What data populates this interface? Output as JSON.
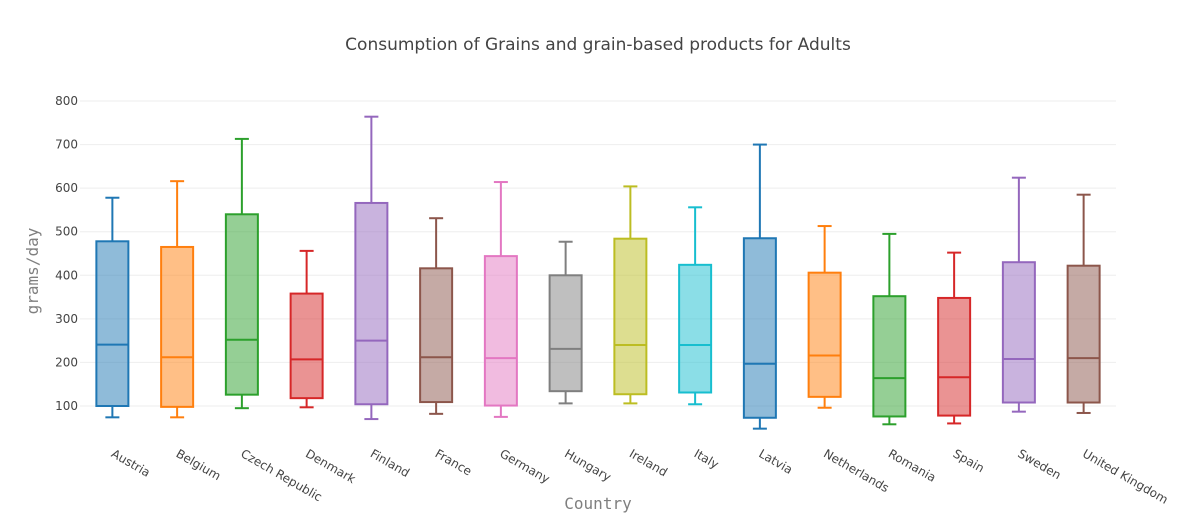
{
  "chart_data": {
    "type": "box",
    "title": "Consumption of Grains and grain-based products for Adults",
    "xlabel": "Country",
    "ylabel": "grams/day",
    "ylim": [
      50,
      820
    ],
    "yticks": [
      100,
      200,
      300,
      400,
      500,
      600,
      700,
      800
    ],
    "grid": true,
    "legend": "none",
    "categories": [
      "Austria",
      "Belgium",
      "Czech Republic",
      "Denmark",
      "Finland",
      "France",
      "Germany",
      "Hungary",
      "Ireland",
      "Italy",
      "Latvia",
      "Netherlands",
      "Romania",
      "Spain",
      "Sweden",
      "United Kingdom"
    ],
    "boxes": [
      {
        "min": 74,
        "q1": 100,
        "median": 241,
        "q3": 478,
        "max": 578
      },
      {
        "min": 74,
        "q1": 98,
        "median": 212,
        "q3": 465,
        "max": 616
      },
      {
        "min": 95,
        "q1": 126,
        "median": 252,
        "q3": 540,
        "max": 713
      },
      {
        "min": 97,
        "q1": 118,
        "median": 207,
        "q3": 358,
        "max": 456
      },
      {
        "min": 70,
        "q1": 104,
        "median": 250,
        "q3": 566,
        "max": 764
      },
      {
        "min": 82,
        "q1": 109,
        "median": 212,
        "q3": 416,
        "max": 531
      },
      {
        "min": 75,
        "q1": 101,
        "median": 210,
        "q3": 444,
        "max": 614
      },
      {
        "min": 106,
        "q1": 134,
        "median": 231,
        "q3": 400,
        "max": 477
      },
      {
        "min": 106,
        "q1": 127,
        "median": 240,
        "q3": 484,
        "max": 604
      },
      {
        "min": 104,
        "q1": 131,
        "median": 240,
        "q3": 424,
        "max": 556
      },
      {
        "min": 48,
        "q1": 73,
        "median": 197,
        "q3": 485,
        "max": 700
      },
      {
        "min": 96,
        "q1": 121,
        "median": 216,
        "q3": 406,
        "max": 513
      },
      {
        "min": 58,
        "q1": 76,
        "median": 164,
        "q3": 352,
        "max": 495
      },
      {
        "min": 60,
        "q1": 78,
        "median": 166,
        "q3": 348,
        "max": 452
      },
      {
        "min": 87,
        "q1": 108,
        "median": 208,
        "q3": 430,
        "max": 624
      },
      {
        "min": 84,
        "q1": 108,
        "median": 210,
        "q3": 422,
        "max": 585
      }
    ],
    "colors": [
      "#1f77b4",
      "#ff7f0e",
      "#2ca02c",
      "#d62728",
      "#9467bd",
      "#8c564b",
      "#e377c2",
      "#7f7f7f",
      "#bcbd22",
      "#17becf",
      "#1f77b4",
      "#ff7f0e",
      "#2ca02c",
      "#d62728",
      "#9467bd",
      "#8c564b"
    ]
  }
}
